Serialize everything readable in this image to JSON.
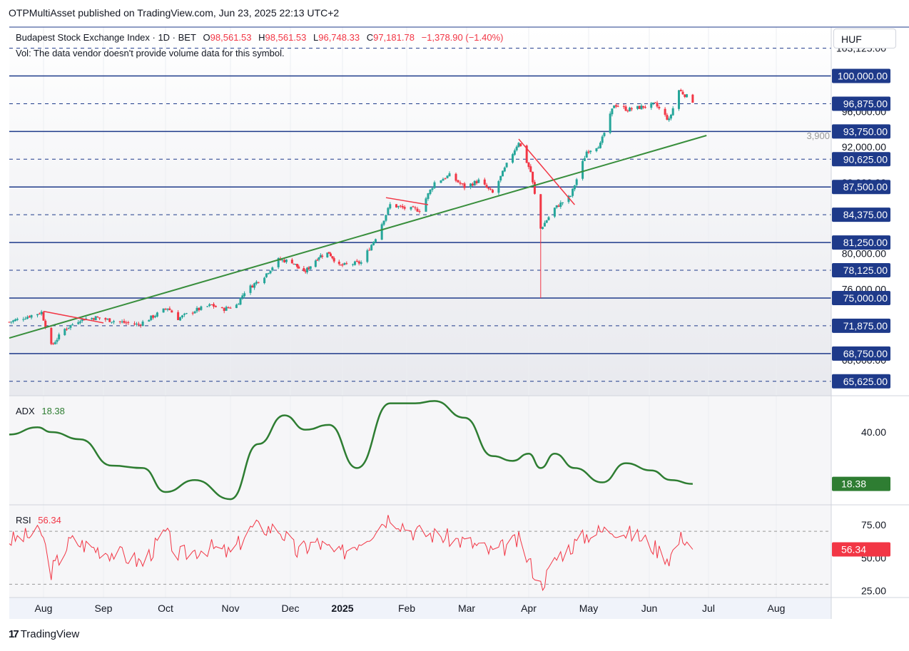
{
  "publisher_text": "OTPMultiAsset published on TradingView.com, Jun 23, 2025 22:13 UTC+2",
  "header": {
    "symbol": "Budapest Stock Exchange Index · 1D · BET",
    "open_label": "O",
    "open": "98,561.53",
    "high_label": "H",
    "high": "98,561.53",
    "low_label": "L",
    "low": "96,748.33",
    "close_label": "C",
    "close": "97,181.78",
    "change": "−1,378.90 (−1.40%)",
    "volume_note": "Vol: The data vendor doesn't provide volume data for this symbol."
  },
  "currency_button": "HUF",
  "branding": {
    "logo_icon": "tradingview-logo-icon",
    "text": "TradingView"
  },
  "colors": {
    "up": "#26a69a",
    "down": "#f23645",
    "level_line": "#1e3a8a",
    "trendline": "#388e3c",
    "resistance_line": "#f23645",
    "adx_line": "#2e7d32",
    "rsi_line": "#f23645",
    "price_badge": "#1e3a8a",
    "adx_badge": "#2e7d32",
    "rsi_badge": "#f23645"
  },
  "chart_data": [
    {
      "type": "candlestick",
      "title": "Budapest Stock Exchange Index · 1D · BET",
      "x_tick_labels": [
        "Aug",
        "Sep",
        "Oct",
        "Nov",
        "Dec",
        "2025",
        "Feb",
        "Mar",
        "Apr",
        "May",
        "Jun",
        "Jul",
        "Aug"
      ],
      "y_tick_labels": [
        "103,125.00",
        "100,000.00",
        "96,875.00",
        "96,000.00",
        "93,750.00",
        "92,000.00",
        "90,625.00",
        "88,000.00",
        "87,500.00",
        "84,375.00",
        "81,250.00",
        "80,000.00",
        "78,125.00",
        "76,000.00",
        "75,000.00",
        "71,875.00",
        "68,750.00",
        "68,000.00",
        "65,625.00"
      ],
      "ylim": [
        64000,
        105500
      ],
      "extra_label": "3,900",
      "horizontal_levels": [
        {
          "value": 103125,
          "style": "dashed"
        },
        {
          "value": 100000,
          "style": "solid"
        },
        {
          "value": 96875,
          "style": "dashed"
        },
        {
          "value": 93750,
          "style": "solid"
        },
        {
          "value": 90625,
          "style": "dashed"
        },
        {
          "value": 87500,
          "style": "solid"
        },
        {
          "value": 84375,
          "style": "dashed"
        },
        {
          "value": 81250,
          "style": "solid"
        },
        {
          "value": 78125,
          "style": "dashed"
        },
        {
          "value": 75000,
          "style": "solid"
        },
        {
          "value": 71875,
          "style": "dashed"
        },
        {
          "value": 68750,
          "style": "solid"
        },
        {
          "value": 65625,
          "style": "dashed"
        }
      ],
      "badge_levels": [
        "100,000.00",
        "96,875.00",
        "93,750.00",
        "90,625.00",
        "87,500.00",
        "84,375.00",
        "81,250.00",
        "78,125.00",
        "75,000.00",
        "71,875.00",
        "68,750.00",
        "65,625.00"
      ],
      "trendlines": [
        {
          "name": "uptrend support",
          "color": "green",
          "from": {
            "date": "2024-07-15",
            "value": 70500
          },
          "to": {
            "date": "2025-06-30",
            "value": 93300
          }
        },
        {
          "name": "resistance",
          "color": "red",
          "from": {
            "date": "2024-08-01",
            "value": 73500
          },
          "to": {
            "date": "2024-09-01",
            "value": 72200
          }
        },
        {
          "name": "resistance",
          "color": "red",
          "from": {
            "date": "2025-01-22",
            "value": 86300
          },
          "to": {
            "date": "2025-02-11",
            "value": 85500
          }
        },
        {
          "name": "resistance",
          "color": "red",
          "from": {
            "date": "2025-03-27",
            "value": 92900
          },
          "to": {
            "date": "2025-04-24",
            "value": 85500
          }
        }
      ],
      "close_path": [
        [
          "2024-07-15",
          72300
        ],
        [
          "2024-07-31",
          73400
        ],
        [
          "2024-08-05",
          69600
        ],
        [
          "2024-08-12",
          71500
        ],
        [
          "2024-08-20",
          72600
        ],
        [
          "2024-08-28",
          72800
        ],
        [
          "2024-09-09",
          72300
        ],
        [
          "2024-09-18",
          72000
        ],
        [
          "2024-09-27",
          73200
        ],
        [
          "2024-10-02",
          73900
        ],
        [
          "2024-10-07",
          72700
        ],
        [
          "2024-10-15",
          73600
        ],
        [
          "2024-10-23",
          74200
        ],
        [
          "2024-10-28",
          73700
        ],
        [
          "2024-11-04",
          74200
        ],
        [
          "2024-11-08",
          75700
        ],
        [
          "2024-11-18",
          77500
        ],
        [
          "2024-11-25",
          79300
        ],
        [
          "2024-12-02",
          79100
        ],
        [
          "2024-12-09",
          77800
        ],
        [
          "2024-12-18",
          79700
        ],
        [
          "2024-12-24",
          80100
        ],
        [
          "2024-12-30",
          78600
        ],
        [
          "2025-01-10",
          79000
        ],
        [
          "2025-01-17",
          81800
        ],
        [
          "2025-01-24",
          85500
        ],
        [
          "2025-01-31",
          85100
        ],
        [
          "2025-02-07",
          84900
        ],
        [
          "2025-02-14",
          88000
        ],
        [
          "2025-02-21",
          88800
        ],
        [
          "2025-02-28",
          87500
        ],
        [
          "2025-03-07",
          88200
        ],
        [
          "2025-03-14",
          86800
        ],
        [
          "2025-03-21",
          90000
        ],
        [
          "2025-03-27",
          92600
        ],
        [
          "2025-04-02",
          89200
        ],
        [
          "2025-04-07",
          82800
        ],
        [
          "2025-04-14",
          85100
        ],
        [
          "2025-04-22",
          86500
        ],
        [
          "2025-04-30",
          91500
        ],
        [
          "2025-05-07",
          92300
        ],
        [
          "2025-05-14",
          96800
        ],
        [
          "2025-05-21",
          96200
        ],
        [
          "2025-05-28",
          96500
        ],
        [
          "2025-06-04",
          96800
        ],
        [
          "2025-06-11",
          95000
        ],
        [
          "2025-06-16",
          98400
        ],
        [
          "2025-06-23",
          97182
        ]
      ],
      "notable_wick": {
        "date": "2025-04-07",
        "low": 75000
      }
    },
    {
      "type": "line",
      "name": "ADX",
      "current_value": "18.38",
      "y_tick_labels": [
        "40.00"
      ],
      "x": [
        "2024-07-15",
        "2024-07-29",
        "2024-08-05",
        "2024-08-20",
        "2024-09-05",
        "2024-09-20",
        "2024-10-01",
        "2024-10-15",
        "2024-11-01",
        "2024-11-15",
        "2024-11-28",
        "2024-12-10",
        "2024-12-24",
        "2025-01-08",
        "2025-01-24",
        "2025-02-05",
        "2025-02-14",
        "2025-02-28",
        "2025-03-14",
        "2025-03-24",
        "2025-04-01",
        "2025-04-07",
        "2025-04-14",
        "2025-04-24",
        "2025-05-08",
        "2025-05-20",
        "2025-06-02",
        "2025-06-12",
        "2025-06-23"
      ],
      "values": [
        39,
        42,
        40,
        37,
        26,
        25,
        15,
        20,
        12,
        35,
        47,
        41,
        43,
        25,
        52,
        52,
        53,
        46,
        30,
        28,
        31,
        25,
        31,
        25,
        19,
        27,
        24,
        20,
        18.38
      ]
    },
    {
      "type": "line",
      "name": "RSI",
      "current_value": "56.34",
      "y_tick_labels": [
        "75.00",
        "50.00",
        "25.00"
      ],
      "ylim": [
        20,
        90
      ],
      "x": [
        "2024-07-15",
        "2024-07-31",
        "2024-08-05",
        "2024-08-15",
        "2024-08-28",
        "2024-09-10",
        "2024-09-20",
        "2024-10-01",
        "2024-10-07",
        "2024-10-22",
        "2024-11-01",
        "2024-11-12",
        "2024-11-25",
        "2024-12-05",
        "2024-12-16",
        "2024-12-30",
        "2025-01-14",
        "2025-01-24",
        "2025-02-04",
        "2025-02-18",
        "2025-03-03",
        "2025-03-14",
        "2025-03-27",
        "2025-04-07",
        "2025-04-16",
        "2025-05-01",
        "2025-05-14",
        "2025-05-28",
        "2025-06-11",
        "2025-06-18",
        "2025-06-23"
      ],
      "values": [
        63,
        69,
        40,
        63,
        57,
        52,
        46,
        69,
        52,
        58,
        53,
        73,
        72,
        54,
        62,
        52,
        68,
        82,
        70,
        66,
        61,
        54,
        63,
        29,
        52,
        68,
        72,
        65,
        50,
        67,
        56.34
      ]
    }
  ]
}
